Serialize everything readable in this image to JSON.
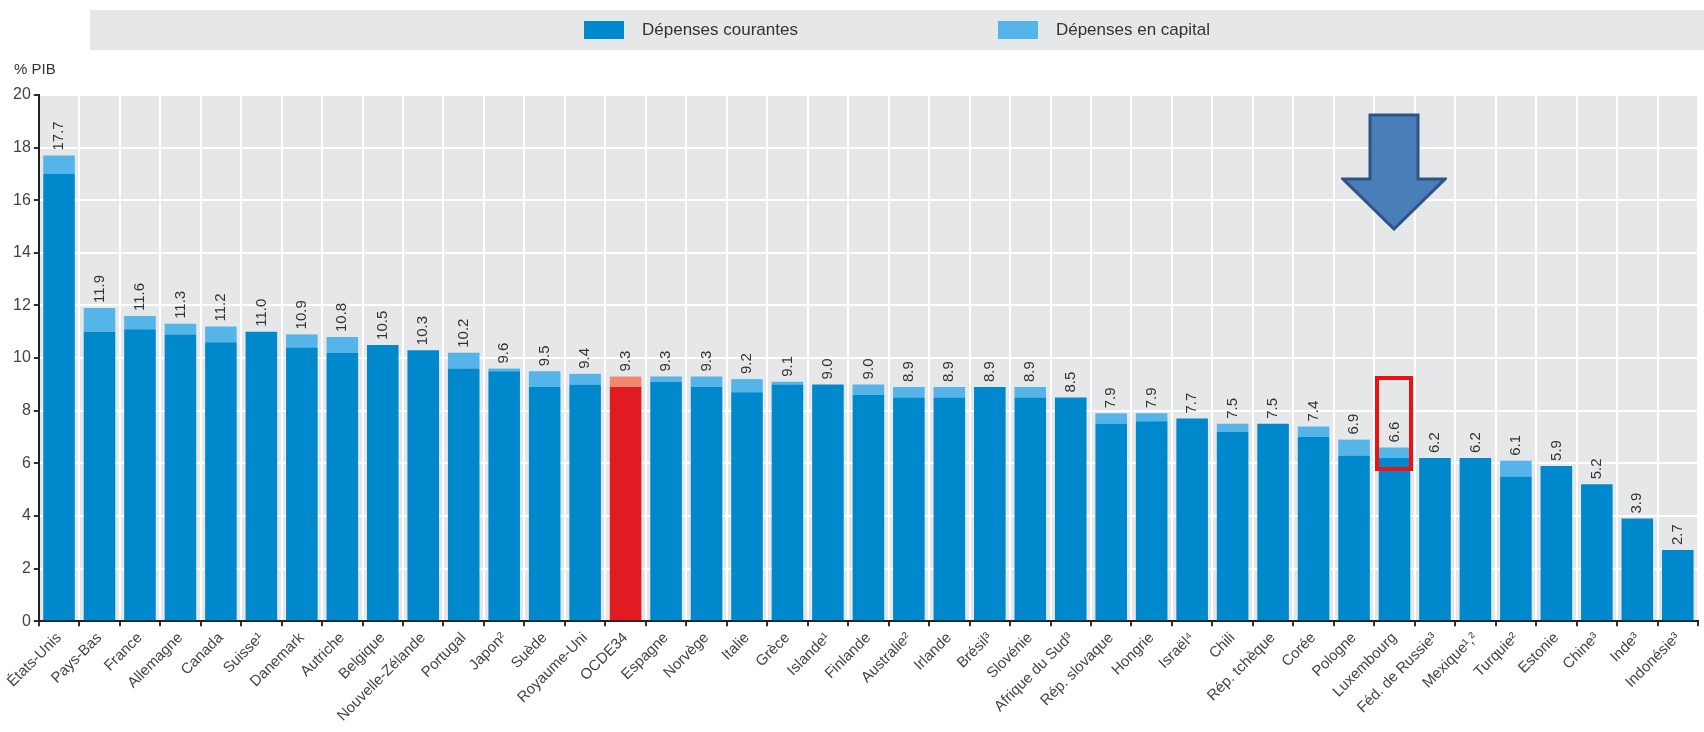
{
  "chart_data": {
    "type": "bar",
    "stacked": true,
    "ylabel": "% PIB",
    "legend": "top",
    "grid": true,
    "categories": [
      "États-Unis",
      "Pays-Bas",
      "France",
      "Allemagne",
      "Canada",
      "Suisse¹",
      "Danemark",
      "Autriche",
      "Belgique",
      "Nouvelle-Zélande",
      "Portugal",
      "Japon²",
      "Suède",
      "Royaume-Uni",
      "OCDE34",
      "Espagne",
      "Norvège",
      "Italie",
      "Grèce",
      "Islande¹",
      "Finlande",
      "Australie²",
      "Irlande",
      "Brésil³",
      "Slovénie",
      "Afrique du Sud³",
      "Rép. slovaque",
      "Hongrie",
      "Israël⁴",
      "Chili",
      "Rép. tchèque",
      "Corée",
      "Pologne",
      "Luxembourg",
      "Féd. de Russie³",
      "Mexique¹,²",
      "Turquie²",
      "Estonie",
      "Chine³",
      "Inde³",
      "Indonésie³"
    ],
    "series": [
      {
        "name": "Dépenses courantes",
        "color": "#0088cc",
        "colors": [
          "#0088cc",
          "#0088cc",
          "#0088cc",
          "#0088cc",
          "#0088cc",
          "#0088cc",
          "#0088cc",
          "#0088cc",
          "#0088cc",
          "#0088cc",
          "#0088cc",
          "#0088cc",
          "#0088cc",
          "#0088cc",
          "#e01b22",
          "#0088cc",
          "#0088cc",
          "#0088cc",
          "#0088cc",
          "#0088cc",
          "#0088cc",
          "#0088cc",
          "#0088cc",
          "#0088cc",
          "#0088cc",
          "#0088cc",
          "#0088cc",
          "#0088cc",
          "#0088cc",
          "#0088cc",
          "#0088cc",
          "#0088cc",
          "#0088cc",
          "#0088cc",
          "#0088cc",
          "#0088cc",
          "#0088cc",
          "#0088cc",
          "#0088cc",
          "#0088cc",
          "#0088cc"
        ],
        "values": [
          17.0,
          11.0,
          11.1,
          10.9,
          10.6,
          11.0,
          10.4,
          10.2,
          10.5,
          10.3,
          9.6,
          9.5,
          8.9,
          9.0,
          8.9,
          9.1,
          8.9,
          8.7,
          9.0,
          9.0,
          8.6,
          8.5,
          8.5,
          8.9,
          8.5,
          8.5,
          7.5,
          7.6,
          7.7,
          7.2,
          7.5,
          7.0,
          6.3,
          6.2,
          6.2,
          6.2,
          5.5,
          5.9,
          5.2,
          3.9,
          2.7
        ]
      },
      {
        "name": "Dépenses en capital",
        "color": "#55b4e8",
        "colors": [
          "#55b4e8",
          "#55b4e8",
          "#55b4e8",
          "#55b4e8",
          "#55b4e8",
          "#55b4e8",
          "#55b4e8",
          "#55b4e8",
          "#55b4e8",
          "#55b4e8",
          "#55b4e8",
          "#55b4e8",
          "#55b4e8",
          "#55b4e8",
          "#f08870",
          "#55b4e8",
          "#55b4e8",
          "#55b4e8",
          "#55b4e8",
          "#55b4e8",
          "#55b4e8",
          "#55b4e8",
          "#55b4e8",
          "#55b4e8",
          "#55b4e8",
          "#55b4e8",
          "#55b4e8",
          "#55b4e8",
          "#55b4e8",
          "#55b4e8",
          "#55b4e8",
          "#55b4e8",
          "#55b4e8",
          "#55b4e8",
          "#55b4e8",
          "#55b4e8",
          "#55b4e8",
          "#55b4e8",
          "#55b4e8",
          "#55b4e8",
          "#55b4e8"
        ],
        "values": [
          0.7,
          0.9,
          0.5,
          0.4,
          0.6,
          0,
          0.5,
          0.6,
          0,
          0,
          0.6,
          0.1,
          0.6,
          0.4,
          0.4,
          0.2,
          0.4,
          0.5,
          0.1,
          0,
          0.4,
          0.4,
          0.4,
          0,
          0.4,
          0,
          0.4,
          0.3,
          0,
          0.3,
          0,
          0.4,
          0.6,
          0.4,
          0,
          0,
          0.6,
          0,
          0,
          0,
          0
        ]
      }
    ],
    "totals": [
      "17.7",
      "11.9",
      "11.6",
      "11.3",
      "11.2",
      "11.0",
      "10.9",
      "10.8",
      "10.5",
      "10.3",
      "10.2",
      "9.6",
      "9.5",
      "9.4",
      "9.3",
      "9.3",
      "9.3",
      "9.2",
      "9.1",
      "9.0",
      "9.0",
      "8.9",
      "8.9",
      "8.9",
      "8.9",
      "8.5",
      "7.9",
      "7.9",
      "7.7",
      "7.5",
      "7.5",
      "7.4",
      "6.9",
      "6.6",
      "6.2",
      "6.2",
      "6.1",
      "5.9",
      "5.2",
      "3.9",
      "2.7"
    ],
    "ylim": [
      0,
      20
    ],
    "yticks": [
      0,
      2,
      4,
      6,
      8,
      10,
      12,
      14,
      16,
      18,
      20
    ]
  }
}
